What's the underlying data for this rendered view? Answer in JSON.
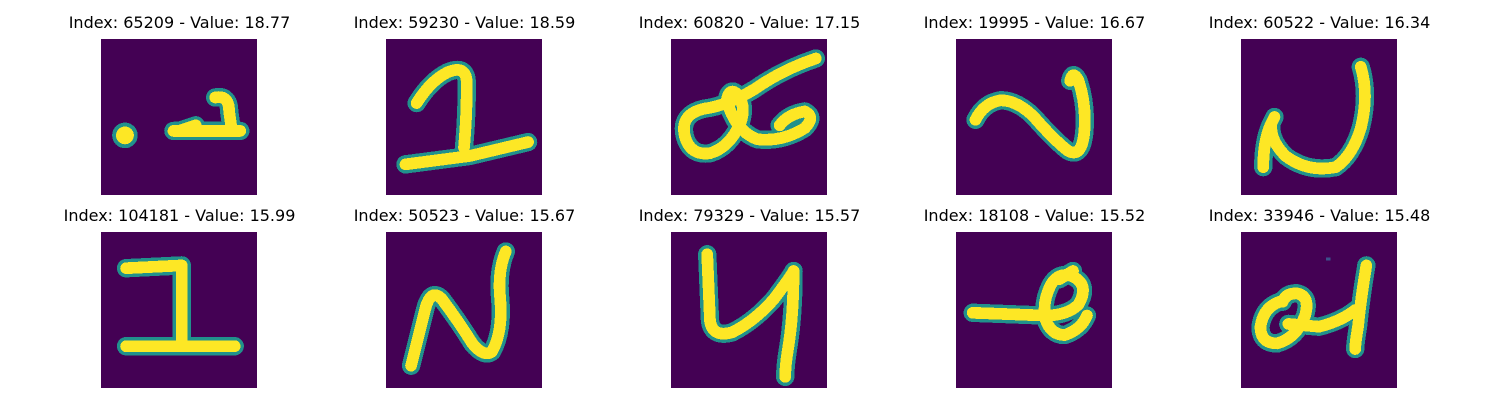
{
  "colors": {
    "background": "#440154",
    "foreground": "#fde725",
    "edge": "#21918c",
    "edge_soft": "#3b528b",
    "title_text": "#000000"
  },
  "panels": [
    {
      "title": "Index: 65209 - Value: 18.77",
      "glyph": "dot-and-two"
    },
    {
      "title": "Index: 59230 - Value: 18.59",
      "glyph": "one"
    },
    {
      "title": "Index: 60820 - Value: 17.15",
      "glyph": "loop-cross"
    },
    {
      "title": "Index: 19995 - Value: 16.67",
      "glyph": "two-curve"
    },
    {
      "title": "Index: 60522 - Value: 16.34",
      "glyph": "two-tall"
    },
    {
      "title": "Index: 104181 - Value: 15.99",
      "glyph": "one-block"
    },
    {
      "title": "Index: 50523 - Value: 15.67",
      "glyph": "n-shape"
    },
    {
      "title": "Index: 79329 - Value: 15.57",
      "glyph": "four-open"
    },
    {
      "title": "Index: 18108 - Value: 15.52",
      "glyph": "dash-loop"
    },
    {
      "title": "Index: 33946 - Value: 15.48",
      "glyph": "loop-four"
    }
  ]
}
